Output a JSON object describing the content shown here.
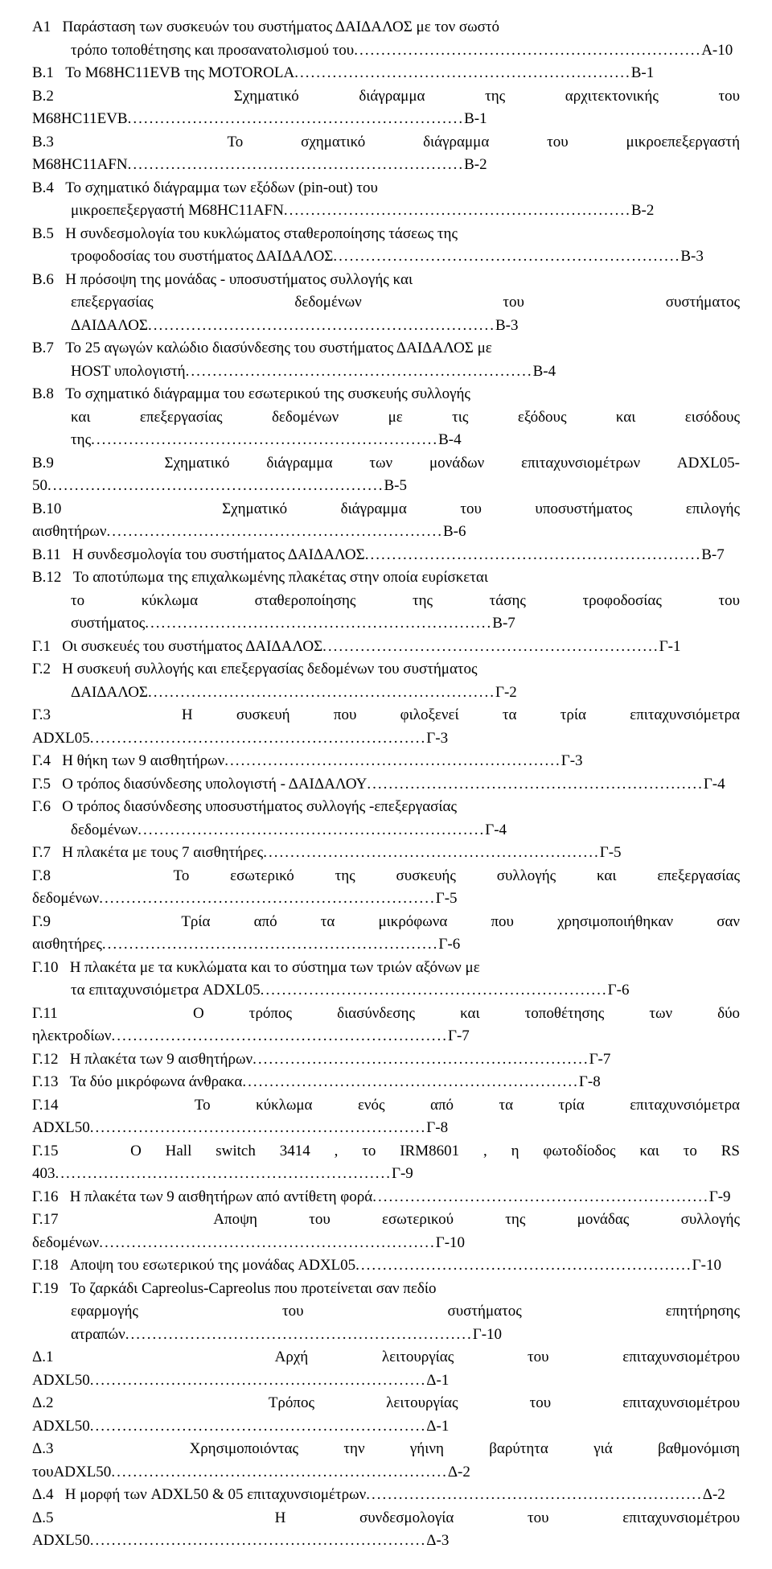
{
  "entries": [
    {
      "label": "Α1",
      "text": "Παράσταση των συσκευών του συστήματος ΔΑΙΔΑΛΟΣ με τον σωστό τρόπο τοποθέτησης και προσανατολισμού του",
      "page": "Α-10",
      "indent": true
    },
    {
      "label": "Β.1",
      "text": "Το M68HC11EVB  της MOTOROLA",
      "page": "Β-1"
    },
    {
      "label": "Β.2",
      "text": "Σχηματικό διάγραμμα της αρχιτεκτονικής του M68HC11EVB",
      "page": "Β-1"
    },
    {
      "label": "Β.3",
      "text": "Το  σχηματικό  διάγραμμα του μικροεπεξεργαστή M68HC11AFN",
      "page": "Β-2"
    },
    {
      "label": "Β.4",
      "text": "Το  σχηματικό  διάγραμμα των εξόδων (pin-out) του μικροεπεξεργαστή M68HC11AFN",
      "page": "Β-2",
      "indent": true
    },
    {
      "label": "Β.5",
      "text": "Η συνδεσμολογία του κυκλώματος σταθεροποίησης τάσεως της τροφοδοσίας του συστήματος  ΔΑΙΔΑΛΟΣ",
      "page": "Β-3",
      "indent": true
    },
    {
      "label": "Β.6",
      "text": "Η πρόσοψη της μονάδας - υποσυστήματος συλλογής και επεξεργασίας δεδομένων  του συστήματος ΔΑΙΔΑΛΟΣ",
      "page": "Β-3",
      "indent": true
    },
    {
      "label": "Β.7",
      "text": "Το 25 αγωγών καλώδιο διασύνδεσης  του συστήματος ΔΑΙΔΑΛΟΣ με HOST  υπολογιστή",
      "page": "Β-4",
      "indent": true
    },
    {
      "label": "Β.8",
      "text": "Το  σχηματικό  διάγραμμα του εσωτερικού της συσκευής συλλογής και επεξεργασίας δεδομένων με τις εξόδους και εισόδους της",
      "page": "Β-4",
      "indent": true
    },
    {
      "label": "Β.9",
      "text": "Σχηματικό διάγραμμα των μονάδων επιταχυνσιομέτρων ADXL05-50",
      "page": "Β-5"
    },
    {
      "label": "Β.10",
      "text": "Σχηματικό διάγραμμα του υποσυστήματος επιλογής αισθητήρων",
      "page": "Β-6"
    },
    {
      "label": "Β.11",
      "text": "Η συνδεσμολογία  του  συστήματος  ΔΑΙΔΑΛΟΣ",
      "page": "Β-7"
    },
    {
      "label": "Β.12",
      "text": "Το αποτύπωμα της επιχαλκωμένης πλακέτας στην οποία ευρίσκεται το κύκλωμα σταθεροποίησης της τάσης τροφοδοσίας του συστήματος",
      "page": "Β-7",
      "indent": true
    },
    {
      "label": "Γ.1",
      "text": "Οι  συσκευές  του συστήματος ΔΑΙΔΑΛΟΣ",
      "page": "Γ-1"
    },
    {
      "label": "Γ.2",
      "text": "Η συσκευή  συλλογής και επεξεργασίας δεδομένων  του συστήματος ΔΑΙΔΑΛΟΣ",
      "page": "Γ-2",
      "indent": true
    },
    {
      "label": "Γ.3",
      "text": "Η συσκευή  που φιλοξενεί τα τρία επιταχυνσιόμετρα ADXL05",
      "page": "Γ-3"
    },
    {
      "label": "Γ.4",
      "text": "Η θήκη των 9 αισθητήρων",
      "page": "Γ-3"
    },
    {
      "label": "Γ.5",
      "text": "Ο τρόπος διασύνδεσης υπολογιστή - ΔΑΙΔΑΛΟΥ",
      "page": "Γ-4"
    },
    {
      "label": "Γ.6",
      "text": "Ο τρόπος διασύνδεσης υποσυστήματος συλλογής -επεξεργασίας δεδομένων",
      "page": "Γ-4",
      "indent": true
    },
    {
      "label": "Γ.7",
      "text": "Η πλακέτα με τους 7 αισθητήρες",
      "page": "Γ-5"
    },
    {
      "label": "Γ.8",
      "text": "Το εσωτερικό της συσκευής συλλογής και επεξεργασίας δεδομένων",
      "page": "Γ-5"
    },
    {
      "label": "Γ.9",
      "text": "Τρία  από  τα  μικρόφωνα  που  χρησιμοποιήθηκαν  σαν  αισθητήρες",
      "page": "Γ-6"
    },
    {
      "label": "Γ.10",
      "text": "Η πλακέτα με τα κυκλώματα  και το σύστημα των τριών αξόνων με τα επιταχυνσιόμετρα ADXL05",
      "page": "Γ-6",
      "indent": true
    },
    {
      "label": "Γ.11",
      "text": "Ο τρόπος διασύνδεσης και τοποθέτησης των δύο ηλεκτροδίων",
      "page": "Γ-7"
    },
    {
      "label": "Γ.12",
      "text": "Η πλακέτα των 9 αισθητήρων",
      "page": "Γ-7"
    },
    {
      "label": "Γ.13",
      "text": "Τα δύο μικρόφωνα άνθρακα",
      "page": "Γ-8"
    },
    {
      "label": "Γ.14",
      "text": "Το κύκλωμα ενός από τα τρία επιταχυνσιόμετρα ADXL50",
      "page": "Γ-8"
    },
    {
      "label": "Γ.15",
      "text": "Ο Hall switch 3414 ,  το IRM8601 , η φωτοδίοδος  και το RS 403",
      "page": "Γ-9"
    },
    {
      "label": "Γ.16",
      "text": "Η πλακέτα των 9 αισθητήρων από αντίθετη φορά",
      "page": "Γ-9"
    },
    {
      "label": "Γ.17",
      "text": "Αποψη του εσωτερικού της μονάδας συλλογής δεδομένων",
      "page": "Γ-10"
    },
    {
      "label": "Γ.18",
      "text": "Αποψη του εσωτερικού της μονάδας ADXL05",
      "page": "Γ-10"
    },
    {
      "label": "Γ.19",
      "text": "Το ζαρκάδι Capreolus-Capreolus που προτείνεται σαν πεδίο εφαρμογής του συστήματος επητήρησης ατραπών",
      "page": "Γ-10",
      "indent": true
    },
    {
      "label": "Δ.1",
      "text": "Αρχή λειτουργίας του επιταχυνσιομέτρου ADXL50",
      "page": "Δ-1"
    },
    {
      "label": "Δ.2",
      "text": "Τρόπος λειτουργίας του επιταχυνσιομέτρου ADXL50",
      "page": "Δ-1"
    },
    {
      "label": "Δ.3",
      "text": "Χρησιμοποιόντας την γήινη βαρύτητα γιά βαθμονόμιση τουADXL50",
      "page": "Δ-2"
    },
    {
      "label": "Δ.4",
      "text": "Η μορφή  των ADXL50 & 05 επιταχυνσιομέτρων",
      "page": "Δ-2"
    },
    {
      "label": "Δ.5",
      "text": "Η συνδεσμολογία του επιταχυνσιομέτρου ADXL50",
      "page": "Δ-3"
    }
  ]
}
